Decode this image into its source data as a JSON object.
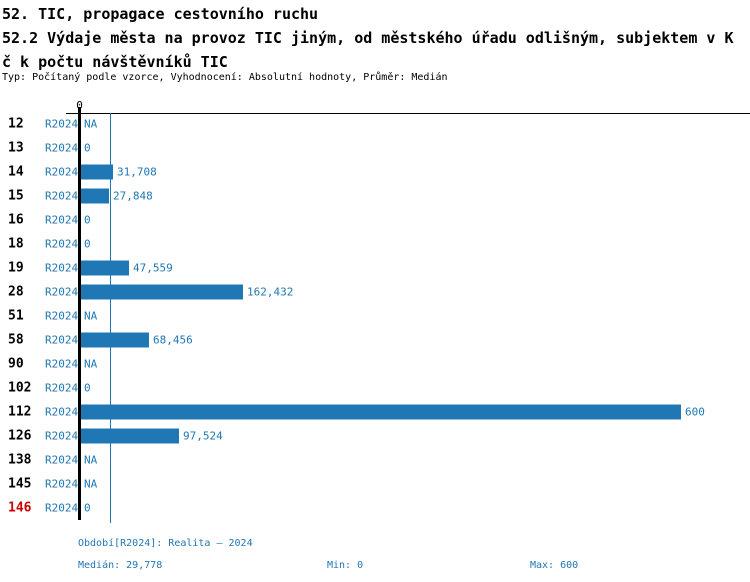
{
  "header": {
    "title": "52. TIC, propagace cestovního ruchu",
    "subtitle_line1": "52.2 Výdaje města na provoz TIC jiným, od městského úřadu odlišným, subjektem v K",
    "subtitle_line2": "č k počtu návštěvníků TIC",
    "meta": "Typ: Počítaný podle vzorce, Vyhodnocení: Absolutní hodnoty, Průměr: Medián"
  },
  "chart_data": {
    "type": "bar",
    "orientation": "horizontal",
    "title": "52.2 Výdaje města na provoz TIC jiným, od městského úřadu odlišným, subjektem v Kč k počtu návštěvníků TIC",
    "series_name": "R2024",
    "axis_origin_label": "0",
    "xlim": [
      0,
      600
    ],
    "median": 29.778,
    "number_format": "czech-decimal-comma",
    "categories": [
      "12",
      "13",
      "14",
      "15",
      "16",
      "18",
      "19",
      "28",
      "51",
      "58",
      "90",
      "102",
      "112",
      "126",
      "138",
      "145",
      "146"
    ],
    "rows": [
      {
        "id": "12",
        "period": "R2024",
        "value": null,
        "label": "NA"
      },
      {
        "id": "13",
        "period": "R2024",
        "value": 0,
        "label": "0"
      },
      {
        "id": "14",
        "period": "R2024",
        "value": 31.708,
        "label": "31,708"
      },
      {
        "id": "15",
        "period": "R2024",
        "value": 27.848,
        "label": "27,848"
      },
      {
        "id": "16",
        "period": "R2024",
        "value": 0,
        "label": "0"
      },
      {
        "id": "18",
        "period": "R2024",
        "value": 0,
        "label": "0"
      },
      {
        "id": "19",
        "period": "R2024",
        "value": 47.559,
        "label": "47,559"
      },
      {
        "id": "28",
        "period": "R2024",
        "value": 162.432,
        "label": "162,432"
      },
      {
        "id": "51",
        "period": "R2024",
        "value": null,
        "label": "NA"
      },
      {
        "id": "58",
        "period": "R2024",
        "value": 68.456,
        "label": "68,456"
      },
      {
        "id": "90",
        "period": "R2024",
        "value": null,
        "label": "NA"
      },
      {
        "id": "102",
        "period": "R2024",
        "value": 0,
        "label": "0"
      },
      {
        "id": "112",
        "period": "R2024",
        "value": 600,
        "label": "600"
      },
      {
        "id": "126",
        "period": "R2024",
        "value": 97.524,
        "label": "97,524"
      },
      {
        "id": "138",
        "period": "R2024",
        "value": null,
        "label": "NA"
      },
      {
        "id": "145",
        "period": "R2024",
        "value": null,
        "label": "NA"
      },
      {
        "id": "146",
        "period": "R2024",
        "value": 0,
        "label": "0",
        "highlight": true
      }
    ]
  },
  "footer": {
    "period": "Období[R2024]: Realita – 2024",
    "median": "Medián: 29,778",
    "min": "Min: 0",
    "max": "Max: 600"
  },
  "colors": {
    "bar": "#1f77b4",
    "text_blue": "#1f77b4",
    "highlight_red": "#cc0000",
    "axis": "#000000"
  }
}
